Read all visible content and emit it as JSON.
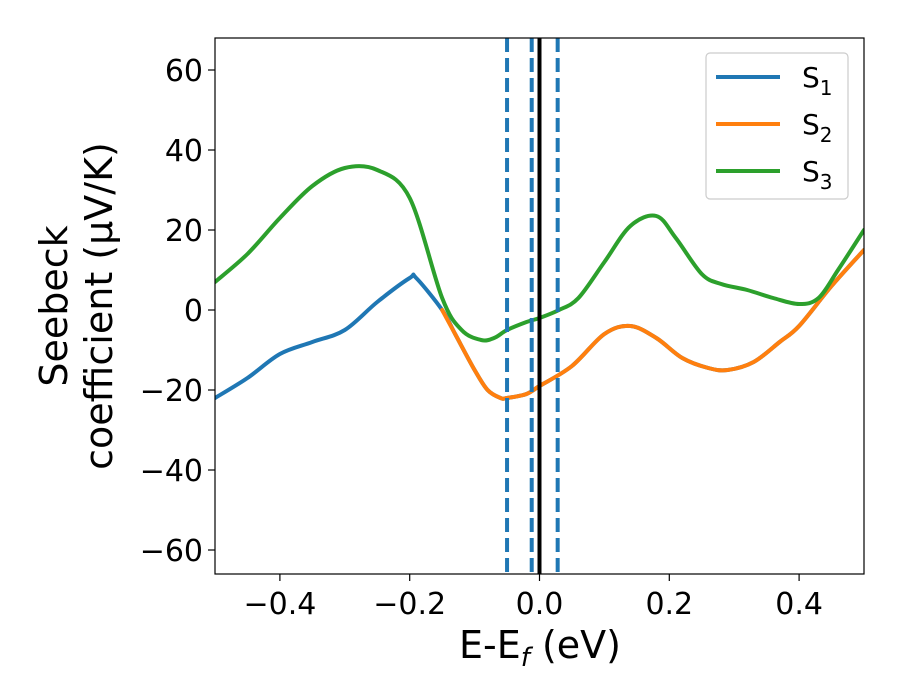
{
  "chart_data": {
    "type": "line",
    "xlabel": {
      "main": "E-E",
      "sub": "f",
      "suffix": " (eV)"
    },
    "ylabel": {
      "line1": "Seebeck",
      "line2": "coefficient  (μV/K)"
    },
    "xlim": [
      -0.5,
      0.5
    ],
    "ylim": [
      -66,
      68
    ],
    "xticks": [
      -0.4,
      -0.2,
      0.0,
      0.2,
      0.4
    ],
    "xtick_labels": [
      "−0.4",
      "−0.2",
      "0.0",
      "0.2",
      "0.4"
    ],
    "yticks": [
      -60,
      -40,
      -20,
      0,
      20,
      40,
      60
    ],
    "ytick_labels": [
      "−60",
      "−40",
      "−20",
      "0",
      "20",
      "40",
      "60"
    ],
    "grid": false,
    "legend_position": "top-right",
    "vlines": [
      {
        "x": -0.05,
        "style": "dashed",
        "color": "#1f77b4"
      },
      {
        "x": -0.012,
        "style": "dashed",
        "color": "#1f77b4"
      },
      {
        "x": 0.0,
        "style": "solid",
        "color": "#000000"
      },
      {
        "x": 0.028,
        "style": "dashed",
        "color": "#1f77b4"
      }
    ],
    "series": [
      {
        "name": "S",
        "sub": "1",
        "color": "#1f77b4",
        "x": [
          -0.5,
          -0.45,
          -0.4,
          -0.35,
          -0.3,
          -0.25,
          -0.2,
          -0.19,
          -0.15,
          -0.13,
          -0.1,
          -0.08,
          -0.06,
          -0.05,
          -0.02,
          0.0,
          0.05,
          0.1,
          0.14,
          0.18,
          0.22,
          0.26,
          0.29,
          0.33,
          0.37,
          0.4,
          0.45,
          0.5
        ],
        "y": [
          -22,
          -17,
          -11,
          -8,
          -5,
          2,
          8,
          8,
          0,
          -6,
          -15,
          -20,
          -22,
          -22,
          -21,
          -19,
          -14,
          -6,
          -4,
          -7,
          -12,
          -14.5,
          -15,
          -13,
          -8,
          -4,
          6,
          15
        ]
      },
      {
        "name": "S",
        "sub": "2",
        "color": "#ff7f0e",
        "x": [
          -0.15,
          -0.13,
          -0.1,
          -0.08,
          -0.06,
          -0.05,
          -0.02,
          0.0,
          0.05,
          0.1,
          0.14,
          0.18,
          0.22,
          0.26,
          0.29,
          0.33,
          0.37,
          0.4,
          0.45,
          0.5
        ],
        "y": [
          0,
          -6,
          -15,
          -20,
          -22,
          -22,
          -21,
          -19,
          -14,
          -6,
          -4,
          -7,
          -12,
          -14.5,
          -15,
          -13,
          -8,
          -4,
          6,
          15
        ]
      },
      {
        "name": "S",
        "sub": "3",
        "color": "#2ca02c",
        "x": [
          -0.5,
          -0.45,
          -0.4,
          -0.35,
          -0.3,
          -0.25,
          -0.2,
          -0.15,
          -0.12,
          -0.09,
          -0.07,
          -0.05,
          -0.02,
          0.0,
          0.03,
          0.06,
          0.1,
          0.14,
          0.18,
          0.21,
          0.25,
          0.28,
          0.32,
          0.36,
          0.4,
          0.43,
          0.46,
          0.5
        ],
        "y": [
          7,
          14,
          23,
          31,
          35.5,
          35,
          28,
          3,
          -5,
          -7.5,
          -7,
          -5,
          -3,
          -2,
          0,
          3,
          12,
          21,
          23.5,
          18,
          9,
          6.5,
          5,
          3,
          1.5,
          3,
          10,
          20
        ]
      }
    ]
  }
}
